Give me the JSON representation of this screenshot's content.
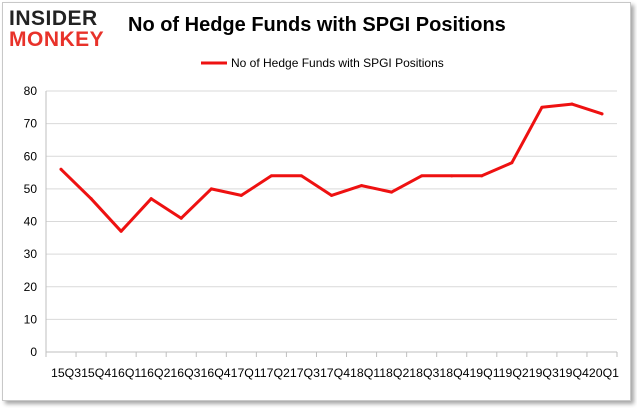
{
  "logo": {
    "top": "INSIDER",
    "bottom": "MONKEY"
  },
  "chart_data": {
    "type": "line",
    "title": "No of Hedge Funds with SPGI Positions",
    "legend": {
      "label": "No of Hedge Funds with SPGI Positions",
      "placement": "top-center"
    },
    "categories": [
      "15Q3",
      "15Q4",
      "16Q1",
      "16Q2",
      "16Q3",
      "16Q4",
      "17Q1",
      "17Q2",
      "17Q3",
      "17Q4",
      "18Q1",
      "18Q2",
      "18Q3",
      "18Q4",
      "19Q1",
      "19Q2",
      "19Q3",
      "19Q4",
      "20Q1"
    ],
    "x_tick_text": "15Q315Q416Q116Q216Q316Q417Q117Q217Q317Q418Q118Q218Q318Q419Q119Q219Q319Q420Q1",
    "series": [
      {
        "name": "No of Hedge Funds with SPGI Positions",
        "values": [
          56,
          47,
          37,
          47,
          41,
          50,
          48,
          54,
          54,
          48,
          51,
          49,
          54,
          54,
          54,
          58,
          75,
          76,
          73
        ]
      }
    ],
    "y_ticks": [
      "0",
      "10",
      "20",
      "30",
      "40",
      "50",
      "60",
      "70",
      "80"
    ],
    "ylim": [
      0,
      80
    ],
    "grid": "horizontal",
    "line_color": "#ee1111",
    "grid_color": "#d9d9d9"
  }
}
